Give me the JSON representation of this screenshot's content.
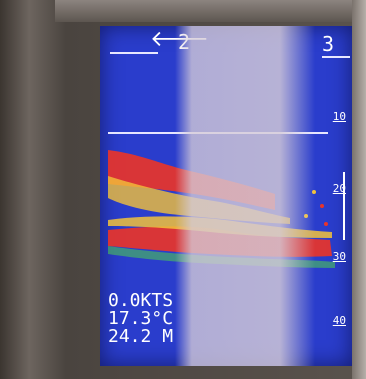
{
  "screen": {
    "top_left_number": "2",
    "top_right_number": "3",
    "depth_scale": [
      "10",
      "20",
      "30",
      "40"
    ],
    "readings": [
      {
        "value": "0.0",
        "unit": "KTS"
      },
      {
        "value": "17.3",
        "unit": "°C"
      },
      {
        "value": "24.2",
        "unit": "M"
      }
    ]
  },
  "colors": {
    "background": "#2a3dcc",
    "echo_strong": "#e8342a",
    "echo_medium": "#f2c23a",
    "echo_weak": "#4fd24a"
  },
  "icons": {
    "arrow": "arrow-left-icon"
  }
}
